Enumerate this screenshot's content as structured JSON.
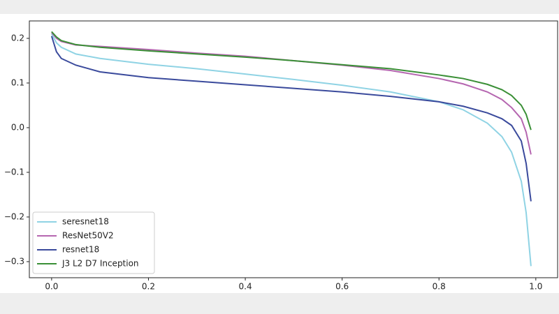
{
  "chart_data": {
    "type": "line",
    "x": [
      0,
      0.01,
      0.02,
      0.05,
      0.1,
      0.2,
      0.3,
      0.4,
      0.5,
      0.6,
      0.7,
      0.8,
      0.85,
      0.9,
      0.93,
      0.95,
      0.97,
      0.98,
      0.99
    ],
    "series": [
      {
        "name": "seresnet18",
        "color": "#8fd3e4",
        "values": [
          0.21,
          0.19,
          0.18,
          0.165,
          0.155,
          0.142,
          0.132,
          0.12,
          0.108,
          0.095,
          0.08,
          0.058,
          0.04,
          0.01,
          -0.02,
          -0.055,
          -0.12,
          -0.19,
          -0.31
        ]
      },
      {
        "name": "ResNet50V2",
        "color": "#b566b0",
        "values": [
          0.213,
          0.2,
          0.193,
          0.185,
          0.182,
          0.175,
          0.167,
          0.16,
          0.15,
          0.14,
          0.128,
          0.11,
          0.098,
          0.08,
          0.063,
          0.045,
          0.02,
          -0.01,
          -0.06
        ]
      },
      {
        "name": "resnet18",
        "color": "#3a4a9c",
        "values": [
          0.205,
          0.17,
          0.155,
          0.14,
          0.125,
          0.112,
          0.104,
          0.096,
          0.088,
          0.08,
          0.07,
          0.058,
          0.048,
          0.033,
          0.02,
          0.005,
          -0.03,
          -0.08,
          -0.165
        ]
      },
      {
        "name": "J3 L2 D7 Inception",
        "color": "#3a8f36",
        "values": [
          0.215,
          0.203,
          0.195,
          0.186,
          0.18,
          0.172,
          0.165,
          0.158,
          0.15,
          0.141,
          0.132,
          0.118,
          0.11,
          0.097,
          0.085,
          0.072,
          0.05,
          0.03,
          -0.005
        ]
      }
    ],
    "xlim": [
      -0.046,
      1.045
    ],
    "ylim": [
      -0.336,
      0.239
    ],
    "xticks": [
      {
        "value": 0,
        "label": "0.0"
      },
      0.2,
      0.4,
      0.6,
      0.8,
      {
        "value": 1,
        "label": "1.0"
      }
    ],
    "yticks": [
      {
        "value": -0.3,
        "label": "−0.3"
      },
      {
        "value": -0.2,
        "label": "−0.2"
      },
      {
        "value": -0.1,
        "label": "−0.1"
      },
      {
        "value": 0,
        "label": "0.0"
      },
      0.1,
      0.2
    ],
    "legend": "lower left"
  }
}
